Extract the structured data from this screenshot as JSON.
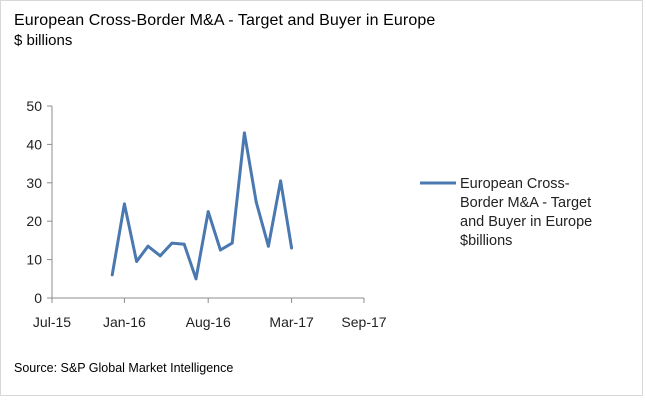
{
  "chart_data": {
    "type": "line",
    "title": "European Cross-Border M&A - Target and Buyer in Europe",
    "subtitle": "$ billions",
    "xlabel": "",
    "ylabel": "",
    "ylim": [
      0,
      50
    ],
    "y_ticks": [
      "0",
      "10",
      "20",
      "30",
      "40",
      "50"
    ],
    "x_ticks": [
      "Jul-15",
      "Jan-16",
      "Aug-16",
      "Mar-17",
      "Sep-17"
    ],
    "x_tick_dates": [
      "2015-07-01",
      "2016-01-01",
      "2016-08-01",
      "2017-03-01",
      "2017-09-01"
    ],
    "grid": false,
    "legend_position": "right",
    "series": [
      {
        "name": "European Cross-Border M&A - Target and Buyer in Europe $billions",
        "name_lines": [
          "European Cross-",
          "Border M&A - Target",
          "and Buyer in Europe",
          "$billions"
        ],
        "color": "#4a78b0",
        "x": [
          "2015-12-01",
          "2016-01-01",
          "2016-02-01",
          "2016-03-01",
          "2016-04-01",
          "2016-05-01",
          "2016-06-01",
          "2016-07-01",
          "2016-08-01",
          "2016-09-01",
          "2016-10-01",
          "2016-11-01",
          "2016-12-01",
          "2017-01-01",
          "2017-02-01",
          "2017-03-01"
        ],
        "values": [
          6,
          24.5,
          9.5,
          13.5,
          11,
          14.3,
          14,
          5,
          22.5,
          12.5,
          14.3,
          43,
          25,
          13.5,
          30.5,
          13
        ]
      }
    ]
  },
  "footer": {
    "source": "Source: S&P Global Market Intelligence"
  }
}
